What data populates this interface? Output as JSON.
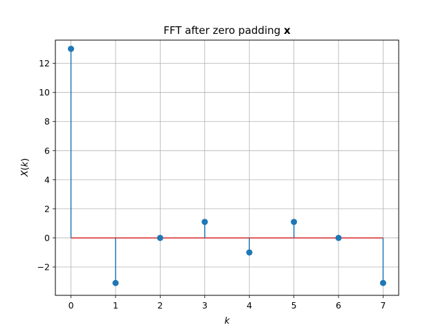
{
  "chart_data": {
    "type": "stem",
    "title": "FFT after zero padding ",
    "title_bold": "x",
    "xlabel": "k",
    "ylabel": {
      "var": "X",
      "open": "(",
      "arg": "k",
      "close": ")"
    },
    "x": [
      0,
      1,
      2,
      3,
      4,
      5,
      6,
      7
    ],
    "values": [
      13,
      -3.1,
      0,
      1.1,
      -1,
      1.1,
      0,
      -3.1
    ],
    "xlim": [
      -0.35,
      7.35
    ],
    "ylim": [
      -3.95,
      13.6
    ],
    "xticks": [
      "0",
      "1",
      "2",
      "3",
      "4",
      "5",
      "6",
      "7"
    ],
    "yticks": [
      -2,
      0,
      2,
      4,
      6,
      8,
      10,
      12
    ],
    "ytick_labels": [
      "−2",
      "0",
      "2",
      "4",
      "6",
      "8",
      "10",
      "12"
    ],
    "baseline": 0,
    "grid": true,
    "colors": {
      "stem": "#1f77b4",
      "marker": "#1f77b4",
      "baseline": "#d62728",
      "grid": "#b0b0b0",
      "axes": "#000000"
    }
  }
}
